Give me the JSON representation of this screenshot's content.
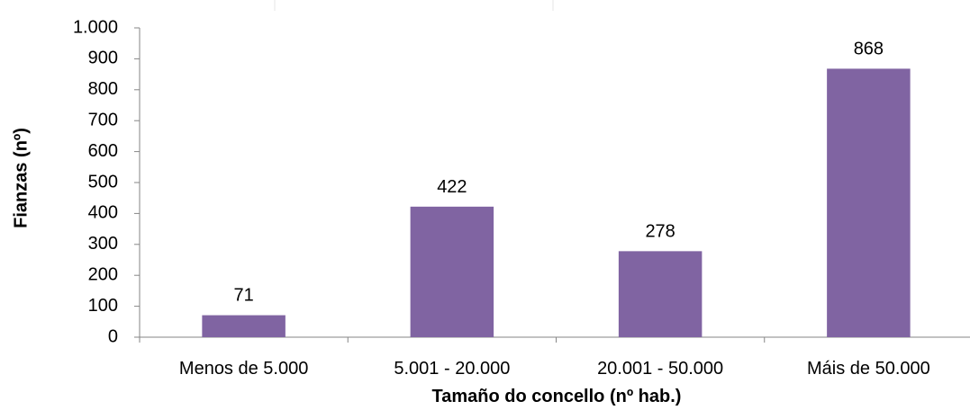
{
  "chart_data": {
    "type": "bar",
    "title": "",
    "xlabel": "Tamaño do concello (nº hab.)",
    "ylabel": "Fianzas (nº)",
    "categories": [
      "Menos de 5.000",
      "5.001 - 20.000",
      "20.001 - 50.000",
      "Máis de 50.000"
    ],
    "values": [
      71,
      422,
      278,
      868
    ],
    "data_labels": [
      "71",
      "422",
      "278",
      "868"
    ],
    "ylim": [
      0,
      1000
    ],
    "yticks": [
      0,
      100,
      200,
      300,
      400,
      500,
      600,
      700,
      800,
      900,
      1000
    ],
    "ytick_labels": [
      "0",
      "100",
      "200",
      "300",
      "400",
      "500",
      "600",
      "700",
      "800",
      "900",
      "1.000"
    ],
    "bar_color": "#8064a2",
    "grid": false,
    "legend": "none"
  }
}
